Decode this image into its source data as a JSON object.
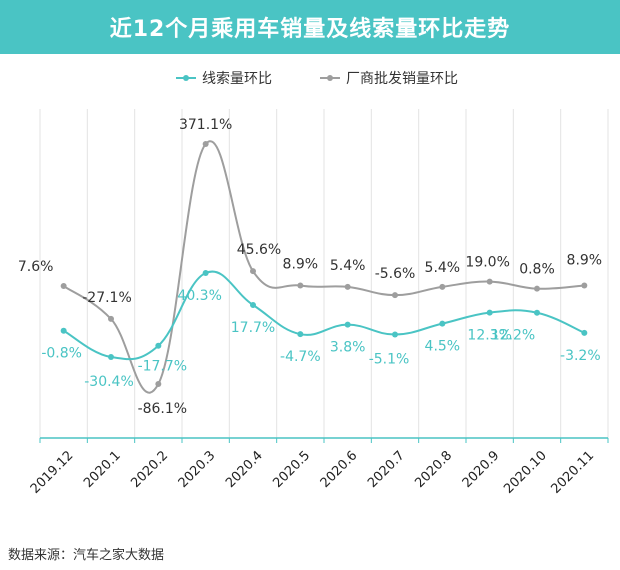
{
  "colors": {
    "title_bg": "#4ac4c4",
    "series_teal": "#4ac4c4",
    "series_gray": "#9e9e9e",
    "grid": "#e3e3e3",
    "axis": "#4ac4c4"
  },
  "source_text": "数据来源：汽车之家大数据",
  "chart_data": {
    "type": "line",
    "title": "近12个月乘用车销量及线索量环比走势",
    "categories": [
      "2019.12",
      "2020.1",
      "2020.2",
      "2020.3",
      "2020.4",
      "2020.5",
      "2020.6",
      "2020.7",
      "2020.8",
      "2020.9",
      "2020.10",
      "2020.11"
    ],
    "series": [
      {
        "name": "线索量环比",
        "values": [
          -0.8,
          -30.4,
          -17.7,
          40.3,
          17.7,
          -4.7,
          3.8,
          -5.1,
          4.5,
          12.3,
          12.2,
          -3.2
        ],
        "labels": [
          "-0.8%",
          "-30.4%",
          "-17.7%",
          "40.3%",
          "17.7%",
          "-4.7%",
          "3.8%",
          "-5.1%",
          "4.5%",
          "12.3%",
          "12.2%",
          "-3.2%"
        ]
      },
      {
        "name": "厂商批发销量环比",
        "values": [
          7.6,
          -27.1,
          -86.1,
          371.1,
          45.6,
          8.9,
          5.4,
          -5.6,
          5.4,
          19.0,
          0.8,
          8.9
        ],
        "labels": [
          "7.6%",
          "-27.1%",
          "-86.1%",
          "371.1%",
          "45.6%",
          "8.9%",
          "5.4%",
          "-5.6%",
          "5.4%",
          "19.0%",
          "0.8%",
          "8.9%"
        ]
      }
    ],
    "legend_position": "top-center",
    "grid": "vertical"
  }
}
